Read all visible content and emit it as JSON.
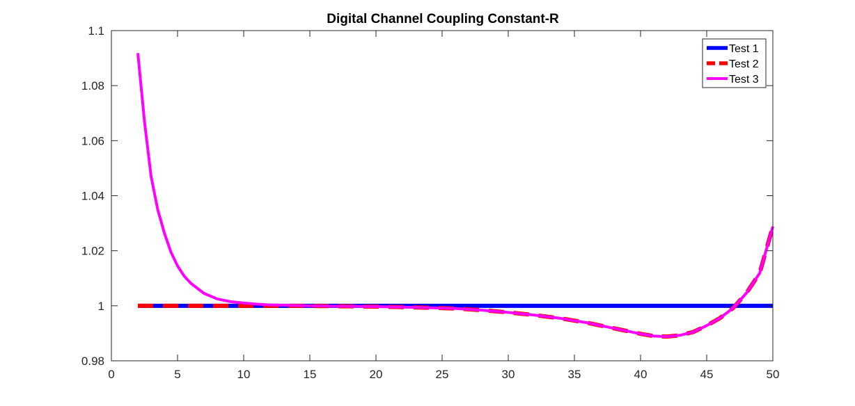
{
  "chart_data": {
    "type": "line",
    "title": "Digital Channel Coupling Constant-R",
    "xlabel": "",
    "ylabel": "",
    "xlim": [
      0,
      50
    ],
    "ylim": [
      0.98,
      1.1
    ],
    "xticks": [
      "0",
      "5",
      "10",
      "15",
      "20",
      "25",
      "30",
      "35",
      "40",
      "45",
      "50"
    ],
    "yticks": [
      "0.98",
      "1",
      "1.02",
      "1.04",
      "1.06",
      "1.08",
      "1.1"
    ],
    "grid": false,
    "legend_position": "top-right",
    "series": [
      {
        "name": "Test 1",
        "color": "#0000ff",
        "style": "solid",
        "x": [
          2,
          50
        ],
        "y": [
          1.0,
          1.0
        ]
      },
      {
        "name": "Test 2",
        "color": "#ff0000",
        "style": "dashed",
        "x": [
          2,
          4,
          6,
          8,
          10,
          12,
          14,
          16,
          18,
          20,
          22,
          24,
          26,
          28,
          30,
          32,
          34,
          36,
          38,
          40,
          41,
          42,
          43,
          44,
          45,
          46,
          47,
          48,
          49,
          50
        ],
        "y": [
          1.0,
          1.0,
          1.0,
          1.0,
          1.0,
          1.0,
          1.0,
          0.9999,
          0.9998,
          0.9997,
          0.9995,
          0.9993,
          0.999,
          0.9984,
          0.9976,
          0.9966,
          0.9954,
          0.9938,
          0.9918,
          0.9898,
          0.989,
          0.9888,
          0.9893,
          0.9905,
          0.9928,
          0.9955,
          0.9992,
          1.0046,
          1.0118,
          1.0288
        ]
      },
      {
        "name": "Test 3",
        "color": "#ff00ff",
        "style": "solid",
        "x": [
          2,
          2.5,
          3,
          3.5,
          4,
          4.5,
          5,
          5.5,
          6,
          7,
          8,
          9,
          10,
          11,
          12,
          13,
          14,
          16,
          18,
          20,
          22,
          24,
          26,
          28,
          30,
          32,
          34,
          36,
          38,
          40,
          41,
          42,
          43,
          44,
          45,
          46,
          47,
          48,
          49,
          50
        ],
        "y": [
          1.0918,
          1.067,
          1.047,
          1.035,
          1.0265,
          1.0195,
          1.0145,
          1.0108,
          1.0082,
          1.0045,
          1.0025,
          1.0015,
          1.001,
          1.0006,
          1.0003,
          1.0002,
          1.0001,
          0.9999,
          0.9998,
          0.9997,
          0.9995,
          0.9993,
          0.999,
          0.9984,
          0.9976,
          0.9966,
          0.9954,
          0.9938,
          0.9918,
          0.9898,
          0.989,
          0.9888,
          0.9893,
          0.9905,
          0.9928,
          0.9955,
          0.9992,
          1.0046,
          1.0118,
          1.0288
        ]
      }
    ]
  }
}
